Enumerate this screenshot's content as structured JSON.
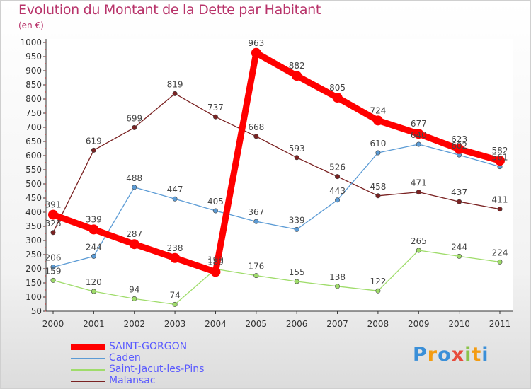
{
  "title": "Evolution du Montant de la Dette par Habitant",
  "subtitle": "(en €)",
  "logo_text": "Proxiti",
  "chart_data": {
    "type": "line",
    "x": [
      "2000",
      "2001",
      "2002",
      "2003",
      "2004",
      "2005",
      "2006",
      "2007",
      "2008",
      "2009",
      "2010",
      "2011"
    ],
    "ylim": [
      50,
      1000
    ],
    "yticks": [
      50,
      100,
      150,
      200,
      250,
      300,
      350,
      400,
      450,
      500,
      550,
      600,
      650,
      700,
      750,
      800,
      850,
      900,
      950,
      1000
    ],
    "grid": false,
    "legend_position": "bottom-left",
    "series": [
      {
        "name": "SAINT-GORGON",
        "color": "#ff0000",
        "values": [
          391,
          339,
          287,
          238,
          189,
          963,
          882,
          805,
          724,
          677,
          623,
          582
        ]
      },
      {
        "name": "Caden",
        "color": "#5b9bd5",
        "values": [
          206,
          244,
          488,
          447,
          405,
          367,
          339,
          443,
          610,
          640,
          602,
          561
        ]
      },
      {
        "name": "Saint-Jacut-les-Pins",
        "color": "#9fdc6a",
        "values": [
          159,
          120,
          94,
          74,
          199,
          176,
          155,
          138,
          122,
          265,
          244,
          224
        ]
      },
      {
        "name": "Malansac",
        "color": "#7a2222",
        "values": [
          328,
          619,
          699,
          819,
          737,
          668,
          593,
          526,
          458,
          471,
          437,
          411
        ]
      }
    ]
  }
}
